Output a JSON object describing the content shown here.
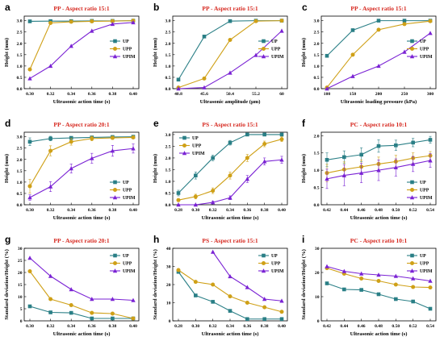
{
  "colors": {
    "UP": "#2a7f86",
    "UPP": "#cfa017",
    "UPIM": "#7a22d4",
    "title": "#d6281f"
  },
  "legend_labels": [
    "UP",
    "UPP",
    "UPIM"
  ],
  "chart_data": [
    {
      "panel": "a",
      "type": "line",
      "title": "PP - Aspect ratio 15:1",
      "xlabel": "Ultrasonic action time (s)",
      "ylabel": "Height (mm)",
      "x": [
        0.3,
        0.32,
        0.34,
        0.36,
        0.38,
        0.4
      ],
      "xticks": [
        "0.30",
        "0.32",
        "0.34",
        "0.36",
        "0.38",
        "0.40"
      ],
      "ylim": [
        0,
        3.2
      ],
      "yticks": [
        0,
        0.5,
        1.0,
        1.5,
        2.0,
        2.5,
        3.0
      ],
      "legend": "right",
      "series": [
        {
          "name": "UP",
          "values": [
            2.97,
            2.98,
            2.98,
            2.99,
            2.99,
            3.0
          ]
        },
        {
          "name": "UPP",
          "values": [
            0.85,
            2.9,
            2.95,
            2.97,
            2.98,
            3.0
          ]
        },
        {
          "name": "UPIM",
          "values": [
            0.45,
            1.0,
            1.88,
            2.55,
            2.85,
            2.92
          ]
        }
      ]
    },
    {
      "panel": "b",
      "type": "line",
      "title": "PP - Aspect ratio 15:1",
      "xlabel": "Ultrasonic amplitude (μm)",
      "ylabel": "Height (mm)",
      "x": [
        40.8,
        45.6,
        50.4,
        55.2,
        60
      ],
      "xticks": [
        "40.8",
        "45.6",
        "50.4",
        "55.2",
        "60"
      ],
      "ylim": [
        0,
        3.2
      ],
      "yticks": [
        0,
        0.5,
        1.0,
        1.5,
        2.0,
        2.5,
        3.0
      ],
      "legend": "right",
      "series": [
        {
          "name": "UP",
          "values": [
            0.4,
            2.3,
            2.98,
            3.0,
            3.0
          ]
        },
        {
          "name": "UPP",
          "values": [
            0.05,
            0.45,
            2.15,
            2.98,
            3.0
          ]
        },
        {
          "name": "UPIM",
          "values": [
            0.0,
            0.05,
            0.7,
            1.48,
            2.55
          ]
        }
      ]
    },
    {
      "panel": "c",
      "type": "line",
      "title": "PP - Aspect ratio 15:1",
      "xlabel": "Ultrasonic loading pressure (kPa)",
      "ylabel": "Height (mm)",
      "x": [
        100,
        150,
        200,
        250,
        300
      ],
      "xticks": [
        "100",
        "150",
        "200",
        "250",
        "300"
      ],
      "ylim": [
        0,
        3.2
      ],
      "yticks": [
        0,
        0.5,
        1.0,
        1.5,
        2.0,
        2.5,
        3.0
      ],
      "legend": "right",
      "series": [
        {
          "name": "UP",
          "values": [
            1.45,
            2.58,
            3.0,
            3.0,
            3.0
          ]
        },
        {
          "name": "UPP",
          "values": [
            0.05,
            1.5,
            2.6,
            2.85,
            2.98
          ]
        },
        {
          "name": "UPIM",
          "values": [
            0.0,
            0.55,
            1.0,
            1.62,
            2.45
          ]
        }
      ]
    },
    {
      "panel": "d",
      "type": "line",
      "title": "PP - Aspect ratio 20:1",
      "xlabel": "Ultrasonic action time (s)",
      "ylabel": "Height (mm)",
      "x": [
        0.3,
        0.32,
        0.34,
        0.36,
        0.38,
        0.4
      ],
      "xticks": [
        "0.30",
        "0.32",
        "0.34",
        "0.36",
        "0.38",
        "0.40"
      ],
      "ylim": [
        0,
        3.2
      ],
      "yticks": [
        0,
        0.5,
        1.0,
        1.5,
        2.0,
        2.5,
        3.0
      ],
      "legend": "bottom-right",
      "series": [
        {
          "name": "UP",
          "values": [
            2.78,
            2.92,
            2.95,
            2.97,
            2.99,
            3.0
          ],
          "err": [
            0.17,
            0.1,
            0.06,
            0.05,
            0.04,
            0.03
          ]
        },
        {
          "name": "UPP",
          "values": [
            0.82,
            2.38,
            2.78,
            2.92,
            2.95,
            2.97
          ],
          "err": [
            0.3,
            0.22,
            0.15,
            0.1,
            0.07,
            0.05
          ]
        },
        {
          "name": "UPIM",
          "values": [
            0.32,
            0.8,
            1.6,
            2.05,
            2.38,
            2.48
          ],
          "err": [
            0.12,
            0.22,
            0.2,
            0.22,
            0.24,
            0.2
          ]
        }
      ]
    },
    {
      "panel": "e",
      "type": "line",
      "title": "PS - Aspect ratio 15:1",
      "xlabel": "Ultrasonic action time (s)",
      "ylabel": "Height (mm)",
      "x": [
        0.28,
        0.3,
        0.32,
        0.34,
        0.36,
        0.38,
        0.4
      ],
      "xticks": [
        "0.28",
        "0.30",
        "0.32",
        "0.34",
        "0.36",
        "0.38",
        "0.40"
      ],
      "ylim": [
        0,
        3.1
      ],
      "yticks": [
        0,
        0.5,
        1.0,
        1.5,
        2.0,
        2.5,
        3.0
      ],
      "legend": "top-left",
      "series": [
        {
          "name": "UP",
          "values": [
            0.5,
            1.25,
            2.0,
            2.65,
            3.0,
            3.0,
            3.0
          ],
          "err": [
            0.12,
            0.15,
            0.12,
            0.1,
            0.05,
            0.03,
            0.03
          ]
        },
        {
          "name": "UPP",
          "values": [
            0.2,
            0.35,
            0.6,
            1.25,
            2.0,
            2.6,
            2.8
          ],
          "err": [
            0.06,
            0.1,
            0.12,
            0.15,
            0.15,
            0.12,
            0.1
          ]
        },
        {
          "name": "UPIM",
          "values": [
            0.0,
            0.0,
            0.1,
            0.3,
            1.1,
            1.85,
            1.92
          ],
          "err": [
            0.02,
            0.02,
            0.05,
            0.08,
            0.15,
            0.15,
            0.15
          ]
        }
      ]
    },
    {
      "panel": "f",
      "type": "line",
      "title": "PC - Aspect ratio 10:1",
      "xlabel": "Ultrasonic action time (s)",
      "ylabel": "Height (mm)",
      "x": [
        0.42,
        0.44,
        0.46,
        0.48,
        0.5,
        0.52,
        0.54
      ],
      "xticks": [
        "0.42",
        "0.44",
        "0.46",
        "0.48",
        "0.50",
        "0.52",
        "0.54"
      ],
      "ylim": [
        0,
        2.1
      ],
      "yticks": [
        0,
        0.5,
        1.0,
        1.5,
        2.0
      ],
      "legend": "bottom-right",
      "series": [
        {
          "name": "UP",
          "values": [
            1.3,
            1.38,
            1.45,
            1.7,
            1.72,
            1.8,
            1.88
          ],
          "err": [
            0.2,
            0.18,
            0.2,
            0.18,
            0.15,
            0.12,
            0.1
          ]
        },
        {
          "name": "UPP",
          "values": [
            0.92,
            1.02,
            1.1,
            1.18,
            1.25,
            1.35,
            1.42
          ],
          "err": [
            0.25,
            0.22,
            0.2,
            0.2,
            0.18,
            0.15,
            0.12
          ]
        },
        {
          "name": "UPIM",
          "values": [
            0.75,
            0.85,
            0.92,
            1.0,
            1.08,
            1.18,
            1.28
          ],
          "err": [
            0.28,
            0.3,
            0.28,
            0.3,
            0.25,
            0.22,
            0.2
          ]
        }
      ]
    },
    {
      "panel": "g",
      "type": "line",
      "title": "PP - Aspect ratio 20:1",
      "xlabel": "Ultrasonic action time (s)",
      "ylabel": "Standard deviation/Height (%)",
      "x": [
        0.3,
        0.32,
        0.34,
        0.36,
        0.38,
        0.4
      ],
      "xticks": [
        "0.30",
        "0.32",
        "0.34",
        "0.36",
        "0.38",
        "0.40"
      ],
      "ylim": [
        0,
        30
      ],
      "yticks": [
        0,
        5,
        10,
        15,
        20,
        25,
        30
      ],
      "legend": "top-right",
      "series": [
        {
          "name": "UP",
          "values": [
            6.0,
            3.5,
            3.3,
            1.0,
            1.0,
            1.0
          ]
        },
        {
          "name": "UPP",
          "values": [
            20.5,
            9.0,
            6.5,
            3.3,
            3.0,
            1.0
          ]
        },
        {
          "name": "UPIM",
          "values": [
            26.0,
            18.5,
            13.0,
            9.0,
            9.0,
            8.5
          ]
        }
      ]
    },
    {
      "panel": "h",
      "type": "line",
      "title": "PS - Aspect ratio 15:1",
      "xlabel": "Ultrasonic action time (s)",
      "ylabel": "Standard deviation/Height (%)",
      "x": [
        0.28,
        0.3,
        0.32,
        0.34,
        0.36,
        0.38,
        0.4
      ],
      "xticks": [
        "0.28",
        "0.30",
        "0.32",
        "0.34",
        "0.36",
        "0.38",
        "0.40"
      ],
      "ylim": [
        0,
        40
      ],
      "yticks": [
        0,
        10,
        20,
        30,
        40
      ],
      "legend": "top-right",
      "series": [
        {
          "name": "UP",
          "values": [
            27.0,
            14.0,
            10.5,
            5.5,
            1.0,
            1.0,
            1.0
          ]
        },
        {
          "name": "UPP",
          "values": [
            28.0,
            21.5,
            20.0,
            13.5,
            10.0,
            7.5,
            5.0
          ]
        },
        {
          "name": "UPIM",
          "values": [
            null,
            null,
            38.0,
            24.5,
            18.5,
            12.0,
            11.0
          ]
        }
      ]
    },
    {
      "panel": "i",
      "type": "line",
      "title": "PC - Aspect ratio 10:1",
      "xlabel": "Ultrasonic action time (s)",
      "ylabel": "Standard deviation/Height (%)",
      "x": [
        0.42,
        0.44,
        0.46,
        0.48,
        0.5,
        0.52,
        0.54
      ],
      "xticks": [
        "0.42",
        "0.44",
        "0.46",
        "0.48",
        "0.50",
        "0.52",
        "0.54"
      ],
      "ylim": [
        0,
        30
      ],
      "yticks": [
        0,
        10,
        20,
        30
      ],
      "legend": "top-right",
      "series": [
        {
          "name": "UP",
          "values": [
            15.5,
            13.0,
            12.8,
            11.0,
            9.0,
            8.0,
            5.0
          ]
        },
        {
          "name": "UPP",
          "values": [
            21.8,
            19.5,
            17.5,
            16.5,
            15.0,
            14.0,
            13.8
          ]
        },
        {
          "name": "UPIM",
          "values": [
            22.5,
            20.5,
            19.5,
            19.0,
            18.5,
            17.5,
            16.5
          ]
        }
      ]
    }
  ]
}
